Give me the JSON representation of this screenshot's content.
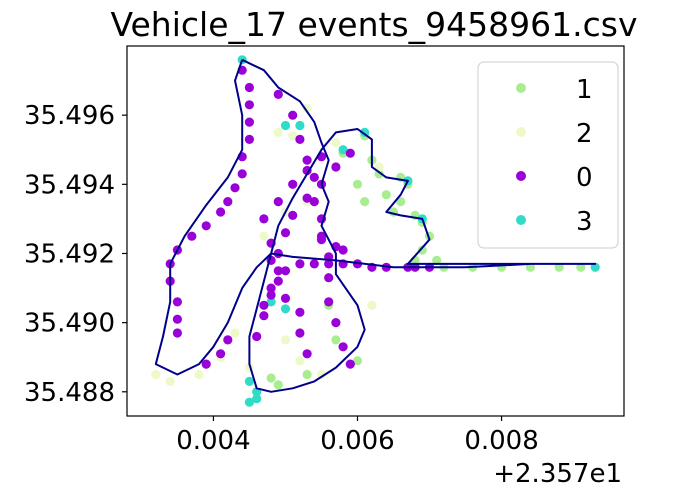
{
  "chart_data": {
    "type": "scatter",
    "title": "Vehicle_17 events_9458961.csv",
    "x_offset_label": "+2.357e1",
    "xlim": [
      0.0028,
      0.0097
    ],
    "ylim": [
      35.4873,
      35.498
    ],
    "x_ticks": [
      {
        "value": 0.004,
        "label": "0.004"
      },
      {
        "value": 0.006,
        "label": "0.006"
      },
      {
        "value": 0.008,
        "label": "0.008"
      }
    ],
    "y_ticks": [
      {
        "value": 35.488,
        "label": "35.488"
      },
      {
        "value": 35.49,
        "label": "35.490"
      },
      {
        "value": 35.492,
        "label": "35.492"
      },
      {
        "value": 35.494,
        "label": "35.494"
      },
      {
        "value": 35.496,
        "label": "35.496"
      }
    ],
    "legend": {
      "placement": "top-right",
      "entries": [
        {
          "label": "1",
          "color": "#a8ee90"
        },
        {
          "label": "2",
          "color": "#eef9c8"
        },
        {
          "label": "0",
          "color": "#9a00d8"
        },
        {
          "label": "3",
          "color": "#30dcc8"
        }
      ]
    },
    "track": {
      "color": "#00008b",
      "points": [
        [
          0.0044,
          35.4976
        ],
        [
          0.0045,
          35.4975
        ],
        [
          0.0047,
          35.4973
        ],
        [
          0.0049,
          35.4968
        ],
        [
          0.0052,
          35.4964
        ],
        [
          0.0054,
          35.4958
        ],
        [
          0.0055,
          35.4952
        ],
        [
          0.0056,
          35.4947
        ],
        [
          0.0055,
          35.494
        ],
        [
          0.0056,
          35.4935
        ],
        [
          0.0055,
          35.4928
        ],
        [
          0.0057,
          35.492
        ],
        [
          0.0057,
          35.4914
        ],
        [
          0.006,
          35.4905
        ],
        [
          0.0061,
          35.4898
        ],
        [
          0.006,
          35.4893
        ],
        [
          0.0057,
          35.4887
        ],
        [
          0.0054,
          35.4883
        ],
        [
          0.0051,
          35.4881
        ],
        [
          0.0048,
          35.488
        ],
        [
          0.0046,
          35.4881
        ],
        [
          0.0045,
          35.4888
        ],
        [
          0.0045,
          35.4896
        ],
        [
          0.0046,
          35.4904
        ],
        [
          0.0047,
          35.4912
        ],
        [
          0.0048,
          35.492
        ],
        [
          0.0049,
          35.4928
        ],
        [
          0.0051,
          35.4936
        ],
        [
          0.0053,
          35.4943
        ],
        [
          0.0055,
          35.495
        ],
        [
          0.0057,
          35.4955
        ],
        [
          0.006,
          35.4956
        ],
        [
          0.0062,
          35.4953
        ],
        [
          0.0062,
          35.4945
        ],
        [
          0.0064,
          35.4942
        ],
        [
          0.0067,
          35.4941
        ],
        [
          0.0066,
          35.4937
        ],
        [
          0.0064,
          35.4932
        ],
        [
          0.0066,
          35.4931
        ],
        [
          0.0069,
          35.493
        ],
        [
          0.007,
          35.4924
        ],
        [
          0.0067,
          35.4917
        ],
        [
          0.0072,
          35.4917
        ],
        [
          0.008,
          35.4917
        ],
        [
          0.0093,
          35.4917
        ],
        [
          0.0084,
          35.4917
        ],
        [
          0.0075,
          35.4916
        ],
        [
          0.0065,
          35.4916
        ],
        [
          0.0057,
          35.4918
        ],
        [
          0.0051,
          35.4919
        ],
        [
          0.0048,
          35.492
        ],
        [
          0.0046,
          35.4916
        ],
        [
          0.0044,
          35.491
        ],
        [
          0.0042,
          35.49
        ],
        [
          0.004,
          35.4893
        ],
        [
          0.0038,
          35.4888
        ],
        [
          0.0035,
          35.4885
        ],
        [
          0.0032,
          35.4888
        ],
        [
          0.0033,
          35.4896
        ],
        [
          0.0034,
          35.4906
        ],
        [
          0.0034,
          35.4917
        ],
        [
          0.0036,
          35.4925
        ],
        [
          0.0039,
          35.4934
        ],
        [
          0.0042,
          35.4942
        ],
        [
          0.0044,
          35.495
        ],
        [
          0.0044,
          35.496
        ],
        [
          0.0043,
          35.497
        ],
        [
          0.0044,
          35.4976
        ]
      ]
    },
    "series": [
      {
        "name": "1",
        "color": "#a8ee90",
        "points": [
          [
            0.0061,
            35.4954
          ],
          [
            0.0062,
            35.4947
          ],
          [
            0.0063,
            35.4943
          ],
          [
            0.0066,
            35.4942
          ],
          [
            0.0067,
            35.494
          ],
          [
            0.0066,
            35.4935
          ],
          [
            0.0065,
            35.4932
          ],
          [
            0.0068,
            35.4931
          ],
          [
            0.0069,
            35.4929
          ],
          [
            0.007,
            35.4925
          ],
          [
            0.0069,
            35.4921
          ],
          [
            0.0068,
            35.4918
          ],
          [
            0.0072,
            35.4916
          ],
          [
            0.0076,
            35.4916
          ],
          [
            0.008,
            35.4916
          ],
          [
            0.0084,
            35.4916
          ],
          [
            0.0088,
            35.4916
          ],
          [
            0.0091,
            35.4916
          ],
          [
            0.0056,
            35.4905
          ],
          [
            0.0057,
            35.4895
          ],
          [
            0.0053,
            35.4885
          ],
          [
            0.0049,
            35.4882
          ],
          [
            0.0058,
            35.4949
          ],
          [
            0.006,
            35.494
          ],
          [
            0.0061,
            35.4935
          ],
          [
            0.0064,
            35.4937
          ],
          [
            0.0071,
            35.4918
          ],
          [
            0.006,
            35.4889
          ],
          [
            0.0048,
            35.4884
          ]
        ]
      },
      {
        "name": "2",
        "color": "#eef9c8",
        "points": [
          [
            0.0032,
            35.4885
          ],
          [
            0.0034,
            35.4883
          ],
          [
            0.0038,
            35.4885
          ],
          [
            0.0041,
            35.489
          ],
          [
            0.0043,
            35.4897
          ],
          [
            0.0046,
            35.488
          ],
          [
            0.0045,
            35.4887
          ],
          [
            0.0052,
            35.4889
          ],
          [
            0.005,
            35.4895
          ],
          [
            0.005,
            35.4932
          ],
          [
            0.0051,
            35.4954
          ],
          [
            0.0057,
            35.4952
          ],
          [
            0.0063,
            35.4945
          ],
          [
            0.0055,
            35.4885
          ],
          [
            0.0062,
            35.4905
          ],
          [
            0.0047,
            35.4925
          ],
          [
            0.0049,
            35.4955
          ],
          [
            0.0053,
            35.4962
          ],
          [
            0.0053,
            35.4935
          ]
        ]
      },
      {
        "name": "0",
        "color": "#9a00d8",
        "points": [
          [
            0.0044,
            35.4973
          ],
          [
            0.0045,
            35.4968
          ],
          [
            0.0045,
            35.4963
          ],
          [
            0.0045,
            35.4958
          ],
          [
            0.0045,
            35.4953
          ],
          [
            0.0044,
            35.4948
          ],
          [
            0.0044,
            35.4943
          ],
          [
            0.0043,
            35.4939
          ],
          [
            0.0042,
            35.4935
          ],
          [
            0.0041,
            35.4932
          ],
          [
            0.0039,
            35.4928
          ],
          [
            0.0037,
            35.4925
          ],
          [
            0.0035,
            35.4921
          ],
          [
            0.0034,
            35.4917
          ],
          [
            0.0034,
            35.4912
          ],
          [
            0.0035,
            35.4906
          ],
          [
            0.0035,
            35.4901
          ],
          [
            0.0035,
            35.4897
          ],
          [
            0.0039,
            35.4888
          ],
          [
            0.0041,
            35.4891
          ],
          [
            0.0042,
            35.4895
          ],
          [
            0.0049,
            35.4966
          ],
          [
            0.0051,
            35.496
          ],
          [
            0.0052,
            35.4953
          ],
          [
            0.0053,
            35.4947
          ],
          [
            0.0054,
            35.4942
          ],
          [
            0.0054,
            35.4935
          ],
          [
            0.0055,
            35.493
          ],
          [
            0.0055,
            35.4925
          ],
          [
            0.0056,
            35.4919
          ],
          [
            0.0056,
            35.4913
          ],
          [
            0.0056,
            35.4906
          ],
          [
            0.0057,
            35.49
          ],
          [
            0.0058,
            35.4893
          ],
          [
            0.0059,
            35.4888
          ],
          [
            0.0047,
            35.4905
          ],
          [
            0.0048,
            35.491
          ],
          [
            0.0049,
            35.4915
          ],
          [
            0.0049,
            35.492
          ],
          [
            0.005,
            35.4926
          ],
          [
            0.0051,
            35.4931
          ],
          [
            0.0053,
            35.4936
          ],
          [
            0.0055,
            35.494
          ],
          [
            0.0057,
            35.4945
          ],
          [
            0.0059,
            35.4949
          ],
          [
            0.0047,
            35.493
          ],
          [
            0.0049,
            35.4935
          ],
          [
            0.0051,
            35.494
          ],
          [
            0.0053,
            35.4944
          ],
          [
            0.0055,
            35.4948
          ],
          [
            0.0046,
            35.4896
          ],
          [
            0.0047,
            35.4902
          ],
          [
            0.0048,
            35.4908
          ],
          [
            0.005,
            35.4915
          ],
          [
            0.0052,
            35.4917
          ],
          [
            0.0054,
            35.4917
          ],
          [
            0.0056,
            35.4917
          ],
          [
            0.0058,
            35.4917
          ],
          [
            0.006,
            35.4917
          ],
          [
            0.0062,
            35.4916
          ],
          [
            0.0064,
            35.4916
          ],
          [
            0.0067,
            35.4916
          ],
          [
            0.0068,
            35.4916
          ],
          [
            0.007,
            35.4916
          ],
          [
            0.0052,
            35.4903
          ],
          [
            0.0052,
            35.4897
          ],
          [
            0.0053,
            35.4891
          ],
          [
            0.0055,
            35.4924
          ],
          [
            0.0057,
            35.4922
          ],
          [
            0.0058,
            35.4921
          ],
          [
            0.0048,
            35.4923
          ],
          [
            0.0048,
            35.4918
          ],
          [
            0.0049,
            35.4912
          ],
          [
            0.005,
            35.4907
          ]
        ]
      },
      {
        "name": "3",
        "color": "#30dcc8",
        "points": [
          [
            0.0044,
            35.4976
          ],
          [
            0.0052,
            35.4957
          ],
          [
            0.005,
            35.4957
          ],
          [
            0.0061,
            35.4955
          ],
          [
            0.0067,
            35.4941
          ],
          [
            0.0069,
            35.493
          ],
          [
            0.0093,
            35.4916
          ],
          [
            0.0046,
            35.488
          ],
          [
            0.0045,
            35.4883
          ],
          [
            0.0045,
            35.4877
          ],
          [
            0.0046,
            35.4878
          ],
          [
            0.0048,
            35.4906
          ],
          [
            0.005,
            35.4904
          ],
          [
            0.0058,
            35.495
          ]
        ]
      }
    ]
  }
}
